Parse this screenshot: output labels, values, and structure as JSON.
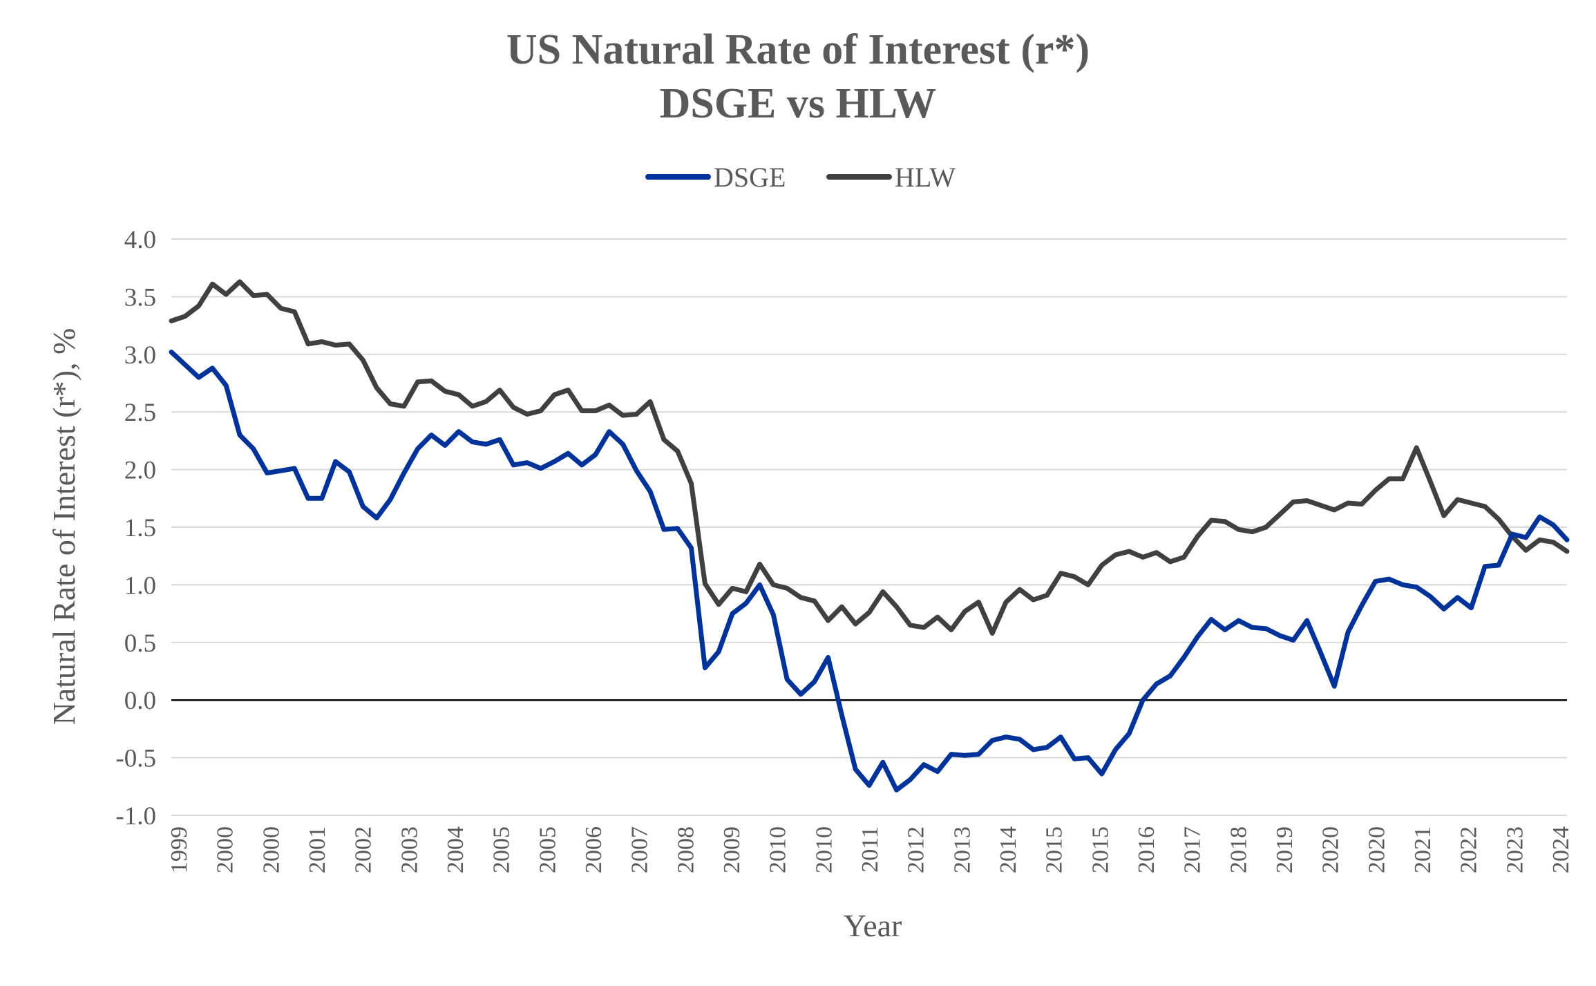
{
  "chart_data": {
    "type": "line",
    "title": "US Natural Rate of Interest (r*)",
    "subtitle": "DSGE vs HLW",
    "xlabel": "Year",
    "ylabel": "Natural Rate of Interest (r*), %",
    "ylim": [
      -1.0,
      4.0
    ],
    "yticks": [
      "4.0",
      "3.5",
      "3.0",
      "2.5",
      "2.0",
      "1.5",
      "1.0",
      "0.5",
      "0.0",
      "-0.5",
      "-1.0"
    ],
    "grid": true,
    "legend": "top-center",
    "x_tick_labels": [
      "1999",
      "2000",
      "2000",
      "2001",
      "2002",
      "2003",
      "2004",
      "2005",
      "2005",
      "2006",
      "2007",
      "2008",
      "2009",
      "2010",
      "2010",
      "2011",
      "2012",
      "2013",
      "2014",
      "2015",
      "2015",
      "2016",
      "2017",
      "2018",
      "2019",
      "2020",
      "2020",
      "2021",
      "2022",
      "2023",
      "2024"
    ],
    "series": [
      {
        "name": "DSGE",
        "color": "#003399",
        "values": [
          3.02,
          2.91,
          2.8,
          2.88,
          2.73,
          2.3,
          2.18,
          1.97,
          1.99,
          2.01,
          1.75,
          1.75,
          2.07,
          1.98,
          1.68,
          1.58,
          1.74,
          1.97,
          2.18,
          2.3,
          2.21,
          2.33,
          2.24,
          2.22,
          2.26,
          2.04,
          2.06,
          2.01,
          2.07,
          2.14,
          2.04,
          2.13,
          2.33,
          2.22,
          1.99,
          1.81,
          1.48,
          1.49,
          1.32,
          0.28,
          0.42,
          0.75,
          0.84,
          1.0,
          0.74,
          0.18,
          0.05,
          0.16,
          0.37,
          -0.13,
          -0.6,
          -0.74,
          -0.54,
          -0.78,
          -0.69,
          -0.56,
          -0.62,
          -0.47,
          -0.48,
          -0.47,
          -0.35,
          -0.32,
          -0.34,
          -0.43,
          -0.41,
          -0.32,
          -0.51,
          -0.5,
          -0.64,
          -0.43,
          -0.29,
          0.0,
          0.14,
          0.21,
          0.37,
          0.55,
          0.7,
          0.61,
          0.69,
          0.63,
          0.62,
          0.56,
          0.52,
          0.69,
          0.41,
          0.12,
          0.59,
          0.82,
          1.03,
          1.05,
          1.0,
          0.98,
          0.9,
          0.79,
          0.89,
          0.8,
          1.16,
          1.17,
          1.44,
          1.41,
          1.59,
          1.52,
          1.39
        ]
      },
      {
        "name": "HLW",
        "color": "#404040",
        "values": [
          3.29,
          3.33,
          3.42,
          3.61,
          3.52,
          3.63,
          3.51,
          3.52,
          3.4,
          3.37,
          3.09,
          3.11,
          3.08,
          3.09,
          2.95,
          2.71,
          2.57,
          2.55,
          2.76,
          2.77,
          2.68,
          2.65,
          2.55,
          2.59,
          2.69,
          2.54,
          2.48,
          2.51,
          2.65,
          2.69,
          2.51,
          2.51,
          2.56,
          2.47,
          2.48,
          2.59,
          2.26,
          2.16,
          1.88,
          1.01,
          0.83,
          0.97,
          0.94,
          1.18,
          1.0,
          0.97,
          0.89,
          0.86,
          0.69,
          0.81,
          0.66,
          0.76,
          0.94,
          0.81,
          0.65,
          0.63,
          0.72,
          0.61,
          0.77,
          0.85,
          0.58,
          0.85,
          0.96,
          0.87,
          0.91,
          1.1,
          1.07,
          1.0,
          1.17,
          1.26,
          1.29,
          1.24,
          1.28,
          1.2,
          1.24,
          1.42,
          1.56,
          1.55,
          1.48,
          1.46,
          1.5,
          1.61,
          1.72,
          1.73,
          1.69,
          1.65,
          1.71,
          1.7,
          1.82,
          1.92,
          1.92,
          2.19,
          1.9,
          1.6,
          1.74,
          1.71,
          1.68,
          1.57,
          1.42,
          1.3,
          1.39,
          1.37,
          1.29
        ]
      }
    ]
  }
}
